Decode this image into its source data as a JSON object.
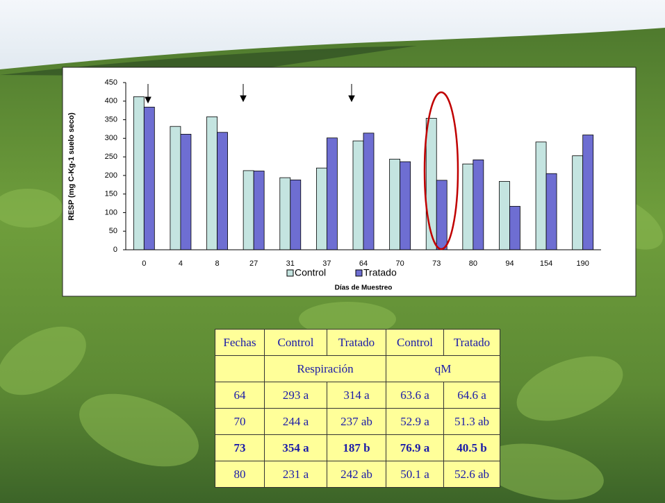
{
  "chart_data": {
    "type": "bar",
    "y_label": "RESP (mg C-Kg-1 suelo seco)",
    "x_label": "Días de Muestreo",
    "categories": [
      "0",
      "4",
      "8",
      "27",
      "31",
      "37",
      "64",
      "70",
      "73",
      "80",
      "94",
      "154",
      "190"
    ],
    "series": [
      {
        "name": "Control",
        "color": "#c4e4e0",
        "values": [
          412,
          332,
          358,
          213,
          194,
          220,
          293,
          244,
          354,
          231,
          184,
          290,
          253
        ]
      },
      {
        "name": "Tratado",
        "color": "#6e6ed2",
        "values": [
          384,
          311,
          316,
          212,
          188,
          301,
          314,
          237,
          187,
          242,
          117,
          205,
          309
        ]
      }
    ],
    "ylim": [
      0,
      450
    ],
    "yticks": [
      0,
      50,
      100,
      150,
      200,
      250,
      300,
      350,
      400,
      450
    ],
    "grid": false
  },
  "table": {
    "header": [
      "Fechas",
      "Control",
      "Tratado",
      "Control",
      "Tratado"
    ],
    "groups": [
      "Respiración",
      "qM"
    ],
    "rows": [
      [
        "64",
        "293 a",
        "314 a",
        "63.6 a",
        "64.6 a"
      ],
      [
        "70",
        "244 a",
        "237 ab",
        "52.9 a",
        "51.3 ab"
      ],
      [
        "73",
        "354 a",
        "187 b",
        "76.9 a",
        "40.5 b"
      ],
      [
        "80",
        "231 a",
        "242 ab",
        "50.1 a",
        "52.6 ab"
      ]
    ]
  }
}
